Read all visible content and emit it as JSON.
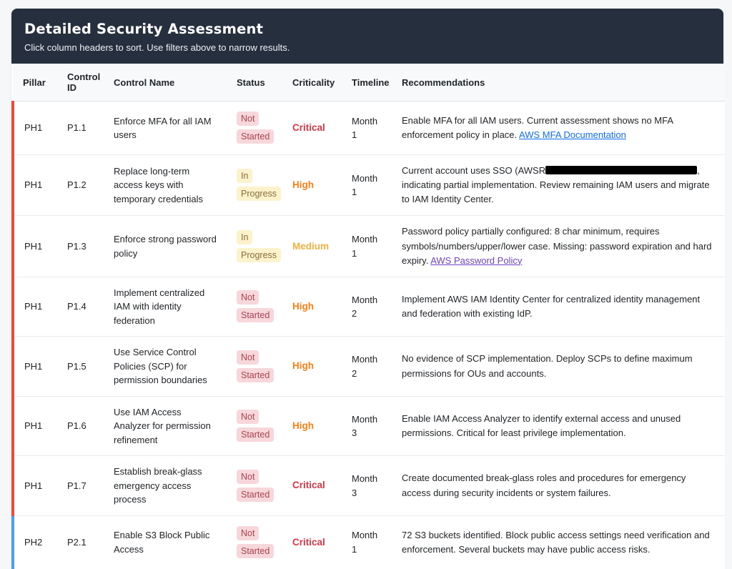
{
  "panel": {
    "title": "Detailed Security Assessment",
    "subtitle": "Click column headers to sort. Use filters above to narrow results."
  },
  "colors": {
    "header_bg": "#262f3e",
    "accent": {
      "PH1": "#e74c3c",
      "PH2": "#4d9ef0"
    },
    "status": {
      "not_started": {
        "bg": "#f8d7da",
        "fg": "#a94452"
      },
      "in_progress": {
        "bg": "#fcf3cd",
        "fg": "#8a6d3b"
      }
    },
    "criticality": {
      "critical": "#dc3545",
      "high": "#fd7e14",
      "medium": "#f4b042"
    },
    "link": {
      "blue": "#0d6efd",
      "purple": "#6f42c1"
    }
  },
  "table": {
    "columns": [
      {
        "label": "Pillar",
        "key": "pillar"
      },
      {
        "label": "Control ID",
        "key": "control-id"
      },
      {
        "label": "Control Name",
        "key": "control-name"
      },
      {
        "label": "Status",
        "key": "status"
      },
      {
        "label": "Criticality",
        "key": "criticality"
      },
      {
        "label": "Timeline",
        "key": "timeline"
      },
      {
        "label": "Recommendations",
        "key": "recommendations"
      }
    ],
    "rows": [
      {
        "pillar": "PH1",
        "control_id": "P1.1",
        "control_name": "Enforce MFA for all IAM users",
        "status": "Not Started",
        "status_key": "not_started",
        "criticality": "Critical",
        "criticality_key": "critical",
        "timeline": "Month 1",
        "recommendation": [
          {
            "t": "text",
            "v": "Enable MFA for all IAM users. Current assessment shows no MFA enforcement policy in place. "
          },
          {
            "t": "link",
            "v": "AWS MFA Documentation",
            "c": "blue"
          }
        ]
      },
      {
        "pillar": "PH1",
        "control_id": "P1.2",
        "control_name": "Replace long-term access keys with temporary credentials",
        "status": "In Progress",
        "status_key": "in_progress",
        "criticality": "High",
        "criticality_key": "high",
        "timeline": "Month 1",
        "recommendation": [
          {
            "t": "text",
            "v": "Current account uses SSO (AWSR"
          },
          {
            "t": "redacted"
          },
          {
            "t": "text",
            "v": ", indicating partial implementation. Review remaining IAM users and migrate to IAM Identity Center."
          }
        ]
      },
      {
        "pillar": "PH1",
        "control_id": "P1.3",
        "control_name": "Enforce strong password policy",
        "status": "In Progress",
        "status_key": "in_progress",
        "criticality": "Medium",
        "criticality_key": "medium",
        "timeline": "Month 1",
        "recommendation": [
          {
            "t": "text",
            "v": "Password policy partially configured: 8 char minimum, requires symbols/numbers/upper/lower case. Missing: password expiration and hard expiry. "
          },
          {
            "t": "link",
            "v": "AWS Password Policy",
            "c": "purple"
          }
        ]
      },
      {
        "pillar": "PH1",
        "control_id": "P1.4",
        "control_name": "Implement centralized IAM with identity federation",
        "status": "Not Started",
        "status_key": "not_started",
        "criticality": "High",
        "criticality_key": "high",
        "timeline": "Month 2",
        "recommendation": [
          {
            "t": "text",
            "v": "Implement AWS IAM Identity Center for centralized identity management and federation with existing IdP."
          }
        ]
      },
      {
        "pillar": "PH1",
        "control_id": "P1.5",
        "control_name": "Use Service Control Policies (SCP) for permission boundaries",
        "status": "Not Started",
        "status_key": "not_started",
        "criticality": "High",
        "criticality_key": "high",
        "timeline": "Month 2",
        "recommendation": [
          {
            "t": "text",
            "v": "No evidence of SCP implementation. Deploy SCPs to define maximum permissions for OUs and accounts."
          }
        ]
      },
      {
        "pillar": "PH1",
        "control_id": "P1.6",
        "control_name": "Use IAM Access Analyzer for permission refinement",
        "status": "Not Started",
        "status_key": "not_started",
        "criticality": "High",
        "criticality_key": "high",
        "timeline": "Month 3",
        "recommendation": [
          {
            "t": "text",
            "v": "Enable IAM Access Analyzer to identify external access and unused permissions. Critical for least privilege implementation."
          }
        ]
      },
      {
        "pillar": "PH1",
        "control_id": "P1.7",
        "control_name": "Establish break-glass emergency access process",
        "status": "Not Started",
        "status_key": "not_started",
        "criticality": "Critical",
        "criticality_key": "critical",
        "timeline": "Month 3",
        "recommendation": [
          {
            "t": "text",
            "v": "Create documented break-glass roles and procedures for emergency access during security incidents or system failures."
          }
        ]
      },
      {
        "pillar": "PH2",
        "control_id": "P2.1",
        "control_name": "Enable S3 Block Public Access",
        "status": "Not Started",
        "status_key": "not_started",
        "criticality": "Critical",
        "criticality_key": "critical",
        "timeline": "Month 1",
        "recommendation": [
          {
            "t": "text",
            "v": "72 S3 buckets identified. Block public access settings need verification and enforcement. Several buckets may have public access risks."
          }
        ]
      }
    ]
  }
}
